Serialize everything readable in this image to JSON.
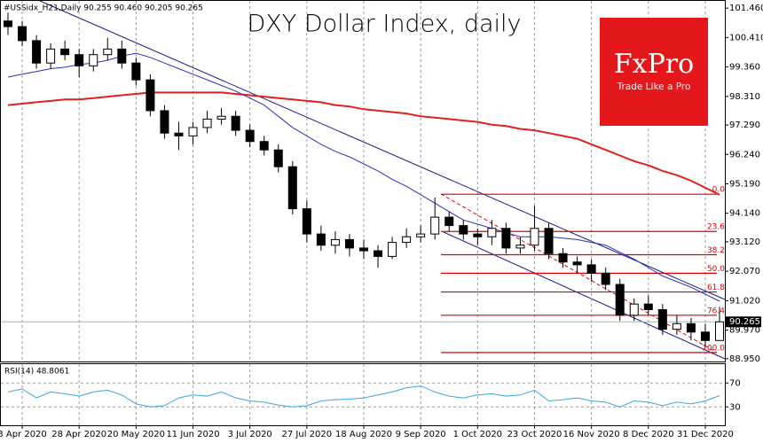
{
  "chart_data": {
    "type": "candlestick",
    "header": "#USSidx_H21,Daily  90.255 90.460 90.205 90.265",
    "title": "DXY Dollar Index, daily",
    "logo": {
      "brand": "FxPro",
      "slogan": "Trade Like a Pro",
      "color": "#e4171b"
    },
    "categories": [
      null,
      "3 Apr 2020",
      null,
      null,
      null,
      "28 Apr 2020",
      null,
      null,
      null,
      "20 May 2020",
      null,
      null,
      null,
      "11 Jun 2020",
      null,
      null,
      null,
      "3 Jul 2020",
      null,
      null,
      null,
      "27 Jul 2020",
      null,
      null,
      null,
      "18 Aug 2020",
      null,
      null,
      null,
      "9 Sep 2020",
      null,
      null,
      null,
      "1 Oct 2020",
      null,
      null,
      null,
      "23 Oct 2020",
      null,
      null,
      null,
      "16 Nov 2020",
      null,
      null,
      null,
      "8 Dec 2020",
      null,
      null,
      null,
      "31 Dec 2020",
      null
    ],
    "open": [
      101.0,
      100.8,
      100.3,
      99.5,
      100.0,
      99.8,
      99.4,
      99.8,
      100.0,
      99.5,
      98.9,
      97.8,
      97.0,
      96.9,
      97.2,
      97.5,
      97.6,
      97.1,
      96.7,
      96.4,
      95.8,
      94.3,
      93.4,
      93.0,
      93.2,
      92.9,
      92.8,
      92.6,
      93.1,
      93.3,
      93.4,
      94.0,
      93.7,
      93.4,
      93.3,
      93.6,
      92.9,
      93.0,
      93.6,
      92.7,
      92.4,
      92.3,
      92.0,
      91.6,
      90.5,
      90.9,
      90.7,
      90.0,
      90.2,
      89.9,
      89.6
    ],
    "high": [
      101.3,
      101.0,
      100.5,
      100.2,
      100.3,
      100.0,
      100.0,
      100.4,
      100.3,
      99.7,
      99.1,
      98.0,
      97.4,
      97.4,
      97.8,
      97.9,
      97.8,
      97.3,
      96.9,
      96.6,
      96.0,
      94.6,
      93.7,
      93.5,
      93.4,
      93.2,
      93.0,
      93.3,
      93.6,
      93.7,
      94.7,
      94.2,
      93.9,
      93.6,
      93.9,
      93.8,
      93.3,
      94.4,
      93.8,
      92.9,
      92.6,
      92.5,
      92.2,
      91.8,
      91.1,
      91.2,
      90.9,
      90.5,
      90.4,
      90.2,
      90.8
    ],
    "low": [
      100.5,
      100.1,
      99.3,
      99.3,
      99.6,
      99.0,
      99.2,
      99.6,
      99.3,
      98.7,
      97.6,
      96.8,
      96.4,
      96.6,
      97.0,
      97.3,
      96.9,
      96.5,
      96.2,
      95.6,
      94.1,
      93.1,
      92.8,
      92.7,
      92.6,
      92.5,
      92.2,
      92.5,
      92.9,
      93.1,
      93.2,
      93.5,
      93.2,
      93.0,
      93.0,
      92.7,
      92.7,
      92.8,
      92.5,
      92.2,
      92.0,
      91.7,
      91.4,
      90.3,
      90.3,
      90.5,
      89.8,
      89.8,
      89.6,
      89.4,
      89.6
    ],
    "close": [
      100.8,
      100.3,
      99.5,
      100.0,
      99.8,
      99.4,
      99.8,
      100.0,
      99.5,
      98.9,
      97.8,
      97.0,
      96.9,
      97.2,
      97.5,
      97.6,
      97.1,
      96.7,
      96.4,
      95.8,
      94.3,
      93.4,
      93.0,
      93.2,
      92.9,
      92.8,
      92.6,
      93.1,
      93.3,
      93.4,
      94.0,
      93.7,
      93.4,
      93.3,
      93.6,
      92.9,
      93.0,
      93.6,
      92.7,
      92.4,
      92.3,
      92.0,
      91.6,
      90.5,
      90.9,
      90.7,
      90.0,
      90.2,
      89.9,
      89.6,
      90.265
    ],
    "moving_averages": [
      {
        "color": "#e0201b",
        "values": [
          98.0,
          98.05,
          98.1,
          98.15,
          98.2,
          98.2,
          98.25,
          98.3,
          98.35,
          98.4,
          98.45,
          98.45,
          98.45,
          98.45,
          98.45,
          98.45,
          98.4,
          98.35,
          98.3,
          98.25,
          98.2,
          98.15,
          98.1,
          98.0,
          97.95,
          97.85,
          97.8,
          97.75,
          97.7,
          97.6,
          97.55,
          97.5,
          97.45,
          97.4,
          97.3,
          97.25,
          97.15,
          97.1,
          97.0,
          96.9,
          96.8,
          96.6,
          96.4,
          96.2,
          96.0,
          95.85,
          95.65,
          95.5,
          95.3,
          95.05,
          94.8
        ]
      },
      {
        "color": "#2b2fc0",
        "values": [
          99.0,
          99.1,
          99.2,
          99.3,
          99.35,
          99.45,
          99.5,
          99.6,
          99.75,
          99.85,
          99.7,
          99.5,
          99.3,
          99.1,
          98.9,
          98.7,
          98.5,
          98.25,
          98.0,
          97.6,
          97.2,
          96.9,
          96.6,
          96.35,
          96.15,
          95.9,
          95.65,
          95.35,
          95.1,
          94.8,
          94.5,
          94.2,
          93.9,
          93.75,
          93.6,
          93.45,
          93.3,
          93.3,
          93.3,
          93.25,
          93.2,
          93.1,
          93.0,
          92.75,
          92.5,
          92.2,
          91.9,
          91.7,
          91.5,
          91.25,
          91.0
        ]
      }
    ],
    "fibonacci": {
      "color": "#e00000",
      "levels": [
        {
          "label": "0.0",
          "value": 94.82
        },
        {
          "label": "23.6",
          "value": 93.49
        },
        {
          "label": "38.2",
          "value": 92.66
        },
        {
          "label": "50.0",
          "value": 92.0
        },
        {
          "label": "61.8",
          "value": 91.33
        },
        {
          "label": "76.4",
          "value": 90.5
        },
        {
          "label": "100.0",
          "value": 89.17
        }
      ]
    },
    "last_price": 90.265,
    "ylim": [
      88.85,
      101.75
    ],
    "yticks": [
      {
        "value": 101.46,
        "label": "101.460"
      },
      {
        "value": 100.41,
        "label": "100.410"
      },
      {
        "value": 99.36,
        "label": "99.360"
      },
      {
        "value": 98.31,
        "label": "98.310"
      },
      {
        "value": 97.29,
        "label": "97.290"
      },
      {
        "value": 96.24,
        "label": "96.240"
      },
      {
        "value": 95.19,
        "label": "95.190"
      },
      {
        "value": 94.14,
        "label": "94.140"
      },
      {
        "value": 93.12,
        "label": "93.120"
      },
      {
        "value": 92.07,
        "label": "92.070"
      },
      {
        "value": 91.02,
        "label": "91.020"
      },
      {
        "value": 89.97,
        "label": "89.970"
      },
      {
        "value": 88.95,
        "label": "88.950"
      }
    ],
    "grid": true,
    "rsi": {
      "label": "RSI(14) 48.8061",
      "color": "#3aa6e0",
      "values": [
        55,
        60,
        45,
        55,
        52,
        48,
        55,
        58,
        50,
        35,
        30,
        32,
        45,
        50,
        48,
        55,
        45,
        40,
        38,
        33,
        30,
        32,
        40,
        42,
        43,
        45,
        50,
        55,
        62,
        65,
        55,
        48,
        45,
        50,
        52,
        48,
        50,
        58,
        40,
        42,
        45,
        40,
        38,
        30,
        40,
        38,
        32,
        38,
        35,
        40,
        48.8061
      ],
      "ylim": [
        0,
        100
      ],
      "yticks": [
        30,
        70
      ]
    }
  }
}
